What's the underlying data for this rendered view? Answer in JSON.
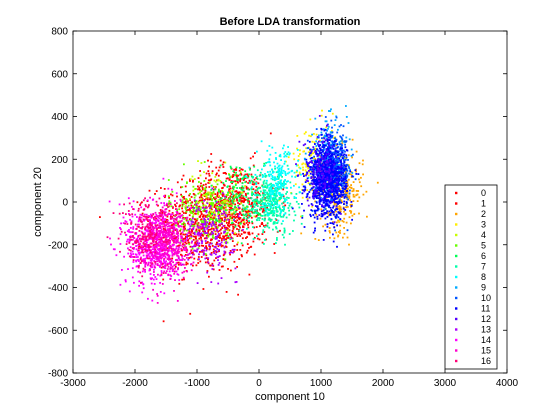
{
  "chart_data": {
    "type": "scatter",
    "title": "Before LDA transformation",
    "xlabel": "component 10",
    "ylabel": "component 20",
    "xlim": [
      -3000,
      4000
    ],
    "ylim": [
      -800,
      800
    ],
    "xticks": [
      -3000,
      -2000,
      -1000,
      0,
      1000,
      2000,
      3000,
      4000
    ],
    "yticks": [
      -800,
      -600,
      -400,
      -200,
      0,
      200,
      400,
      600,
      800
    ],
    "xtick_labels": [
      "-3000",
      "-2000",
      "-1000",
      "0",
      "1000",
      "2000",
      "3000",
      "4000"
    ],
    "ytick_labels": [
      "-800",
      "-600",
      "-400",
      "-200",
      "0",
      "200",
      "400",
      "600",
      "800"
    ],
    "grid": false,
    "legend_position": "right",
    "marker": "dot",
    "series": [
      {
        "name": "0",
        "color": "#ff0000",
        "center": [
          -900,
          -120
        ],
        "spread": [
          750,
          190
        ],
        "points": 700
      },
      {
        "name": "1",
        "color": "#ff0000",
        "center": [
          -400,
          0
        ],
        "spread": [
          650,
          170
        ],
        "points": 450
      },
      {
        "name": "2",
        "color": "#ffa500",
        "center": [
          1300,
          50
        ],
        "spread": [
          350,
          170
        ],
        "points": 300
      },
      {
        "name": "3",
        "color": "#ffee00",
        "center": [
          900,
          180
        ],
        "spread": [
          350,
          170
        ],
        "points": 150
      },
      {
        "name": "4",
        "color": "#c8ff00",
        "center": [
          -700,
          0
        ],
        "spread": [
          450,
          140
        ],
        "points": 150
      },
      {
        "name": "5",
        "color": "#66ff00",
        "center": [
          -900,
          -50
        ],
        "spread": [
          500,
          150
        ],
        "points": 200
      },
      {
        "name": "6",
        "color": "#00ff55",
        "center": [
          -300,
          30
        ],
        "spread": [
          450,
          140
        ],
        "points": 150
      },
      {
        "name": "7",
        "color": "#00ffaa",
        "center": [
          200,
          0
        ],
        "spread": [
          350,
          140
        ],
        "points": 350
      },
      {
        "name": "8",
        "color": "#00ffff",
        "center": [
          300,
          100
        ],
        "spread": [
          300,
          140
        ],
        "points": 200
      },
      {
        "name": "9",
        "color": "#00aaff",
        "center": [
          1100,
          200
        ],
        "spread": [
          300,
          160
        ],
        "points": 200
      },
      {
        "name": "10",
        "color": "#0055ff",
        "center": [
          1200,
          150
        ],
        "spread": [
          250,
          150
        ],
        "points": 450
      },
      {
        "name": "11",
        "color": "#0000ff",
        "center": [
          1100,
          100
        ],
        "spread": [
          280,
          160
        ],
        "points": 900
      },
      {
        "name": "12",
        "color": "#5500ff",
        "center": [
          1000,
          150
        ],
        "spread": [
          250,
          150
        ],
        "points": 150
      },
      {
        "name": "13",
        "color": "#aa00ff",
        "center": [
          -800,
          -150
        ],
        "spread": [
          400,
          150
        ],
        "points": 200
      },
      {
        "name": "14",
        "color": "#ff00ff",
        "center": [
          -1700,
          -200
        ],
        "spread": [
          400,
          170
        ],
        "points": 600
      },
      {
        "name": "15",
        "color": "#ff00cc",
        "center": [
          -1500,
          -180
        ],
        "spread": [
          350,
          150
        ],
        "points": 400
      },
      {
        "name": "16",
        "color": "#ff0077",
        "center": [
          -1800,
          -150
        ],
        "spread": [
          400,
          150
        ],
        "points": 200
      }
    ]
  }
}
